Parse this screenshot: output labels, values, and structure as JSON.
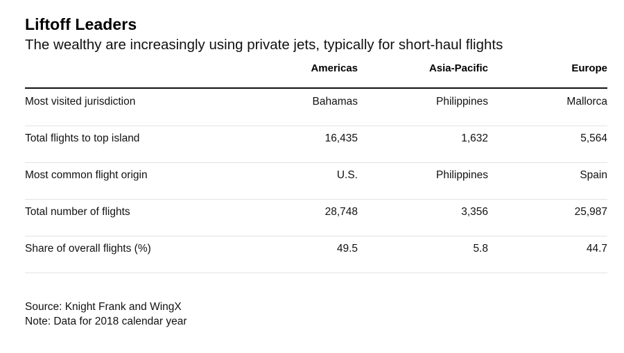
{
  "header": {
    "title": "Liftoff Leaders",
    "subtitle": "The wealthy are increasingly using private jets, typically for short-haul flights"
  },
  "chart_data": {
    "type": "table",
    "columns": [
      "Americas",
      "Asia-Pacific",
      "Europe"
    ],
    "rows": [
      {
        "label": "Most visited jurisdiction",
        "values": [
          "Bahamas",
          "Philippines",
          "Mallorca"
        ]
      },
      {
        "label": "Total flights to top island",
        "values": [
          "16,435",
          "1,632",
          "5,564"
        ]
      },
      {
        "label": "Most common flight origin",
        "values": [
          "U.S.",
          "Philippines",
          "Spain"
        ]
      },
      {
        "label": "Total number of flights",
        "values": [
          "28,748",
          "3,356",
          "25,987"
        ]
      },
      {
        "label": "Share of overall flights (%)",
        "values": [
          "49.5",
          "5.8",
          "44.7"
        ]
      }
    ]
  },
  "footer": {
    "source": "Source: Knight Frank and WingX",
    "note": "Note: Data for 2018 calendar year"
  }
}
